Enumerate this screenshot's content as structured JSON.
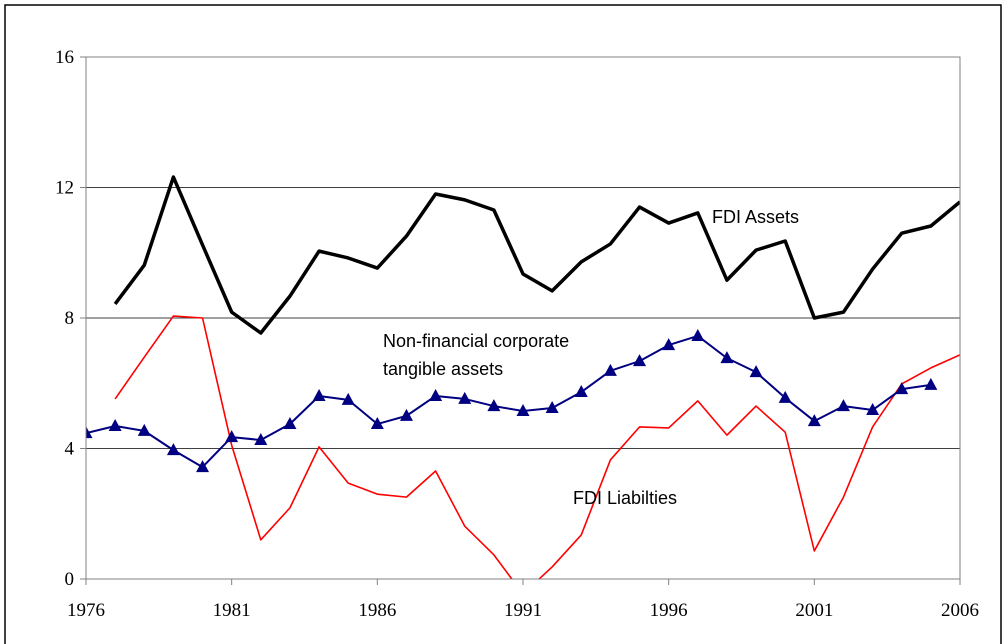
{
  "chart_data": {
    "type": "line",
    "x": [
      1976,
      1977,
      1978,
      1979,
      1980,
      1981,
      1982,
      1983,
      1984,
      1985,
      1986,
      1987,
      1988,
      1989,
      1990,
      1991,
      1992,
      1993,
      1994,
      1995,
      1996,
      1997,
      1998,
      1999,
      2000,
      2001,
      2002,
      2003,
      2004,
      2005,
      2006
    ],
    "series": [
      {
        "color": "#000000",
        "values": [
          null,
          8.43,
          9.62,
          12.32,
          10.24,
          8.18,
          7.54,
          8.67,
          10.05,
          9.84,
          9.53,
          10.51,
          11.8,
          11.62,
          11.31,
          9.35,
          8.83,
          9.72,
          10.27,
          11.4,
          10.91,
          11.22,
          9.16,
          10.08,
          10.36,
          8.0,
          8.18,
          9.5,
          10.6,
          10.82,
          11.56
        ]
      },
      {
        "color": "#ff0000",
        "values": [
          null,
          5.52,
          6.8,
          8.06,
          8.0,
          4.1,
          1.2,
          2.18,
          4.05,
          2.94,
          2.6,
          2.51,
          3.31,
          1.62,
          0.74,
          -0.46,
          0.37,
          1.35,
          3.65,
          4.66,
          4.63,
          5.46,
          4.41,
          5.3,
          4.5,
          0.86,
          2.51,
          4.66,
          5.98,
          6.47,
          6.87
        ]
      },
      {
        "color": "#000080",
        "marker": "triangle",
        "values": [
          4.47,
          4.69,
          4.54,
          3.95,
          3.43,
          4.35,
          4.26,
          4.75,
          5.61,
          5.49,
          4.75,
          5.0,
          5.61,
          5.52,
          5.3,
          5.15,
          5.24,
          5.73,
          6.38,
          6.68,
          7.17,
          7.45,
          6.77,
          6.34,
          5.55,
          4.84,
          5.3,
          5.18,
          5.82,
          5.95,
          null
        ]
      }
    ],
    "annotations": [
      {
        "lines": [
          "FDI Assets"
        ]
      },
      {
        "lines": [
          "Non-financial corporate",
          "tangible assets"
        ]
      },
      {
        "lines": [
          "FDI Liabilties"
        ]
      }
    ],
    "xlim": [
      1976,
      2006
    ],
    "xticks": [
      1976,
      1981,
      1986,
      1991,
      1996,
      2001,
      2006
    ],
    "ylim": [
      0,
      16
    ],
    "yticks": [
      0,
      4,
      8,
      12,
      16
    ],
    "grid": true
  }
}
